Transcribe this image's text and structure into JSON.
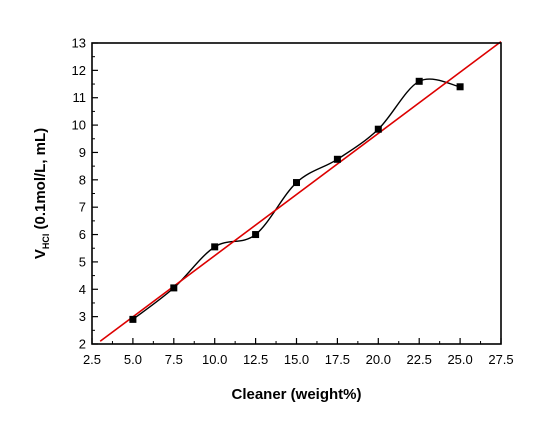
{
  "chart_data": {
    "type": "scatter",
    "title": "",
    "xlabel": "Cleaner (weight%)",
    "ylabel": {
      "main": "V",
      "subscript": "HCl",
      "rest": " (0.1mol/L, mL)"
    },
    "xlim": [
      2.5,
      27.5
    ],
    "ylim": [
      2,
      13
    ],
    "x_ticks": [
      "2.5",
      "5.0",
      "7.5",
      "10.0",
      "12.5",
      "15.0",
      "17.5",
      "20.0",
      "22.5",
      "25.0",
      "27.5"
    ],
    "y_ticks": [
      "2",
      "3",
      "4",
      "5",
      "6",
      "7",
      "8",
      "9",
      "10",
      "11",
      "12",
      "13"
    ],
    "grid": false,
    "series": [
      {
        "kind": "points",
        "marker": "square",
        "color": "#000000",
        "x": [
          5.0,
          7.5,
          10.0,
          12.5,
          15.0,
          17.5,
          20.0,
          22.5,
          25.0
        ],
        "y": [
          2.9,
          4.05,
          5.55,
          6.0,
          7.9,
          8.75,
          9.85,
          11.6,
          11.4
        ]
      },
      {
        "kind": "smooth-line",
        "color": "#000000",
        "x": [
          5.0,
          7.5,
          10.0,
          12.5,
          15.0,
          17.5,
          20.0,
          22.5,
          25.0
        ],
        "y": [
          2.9,
          4.05,
          5.55,
          6.0,
          7.9,
          8.75,
          9.85,
          11.6,
          11.4
        ]
      },
      {
        "kind": "fit-line",
        "color": "#dd0000",
        "x": [
          3.0,
          27.5
        ],
        "y": [
          2.1,
          13.05
        ]
      }
    ]
  }
}
